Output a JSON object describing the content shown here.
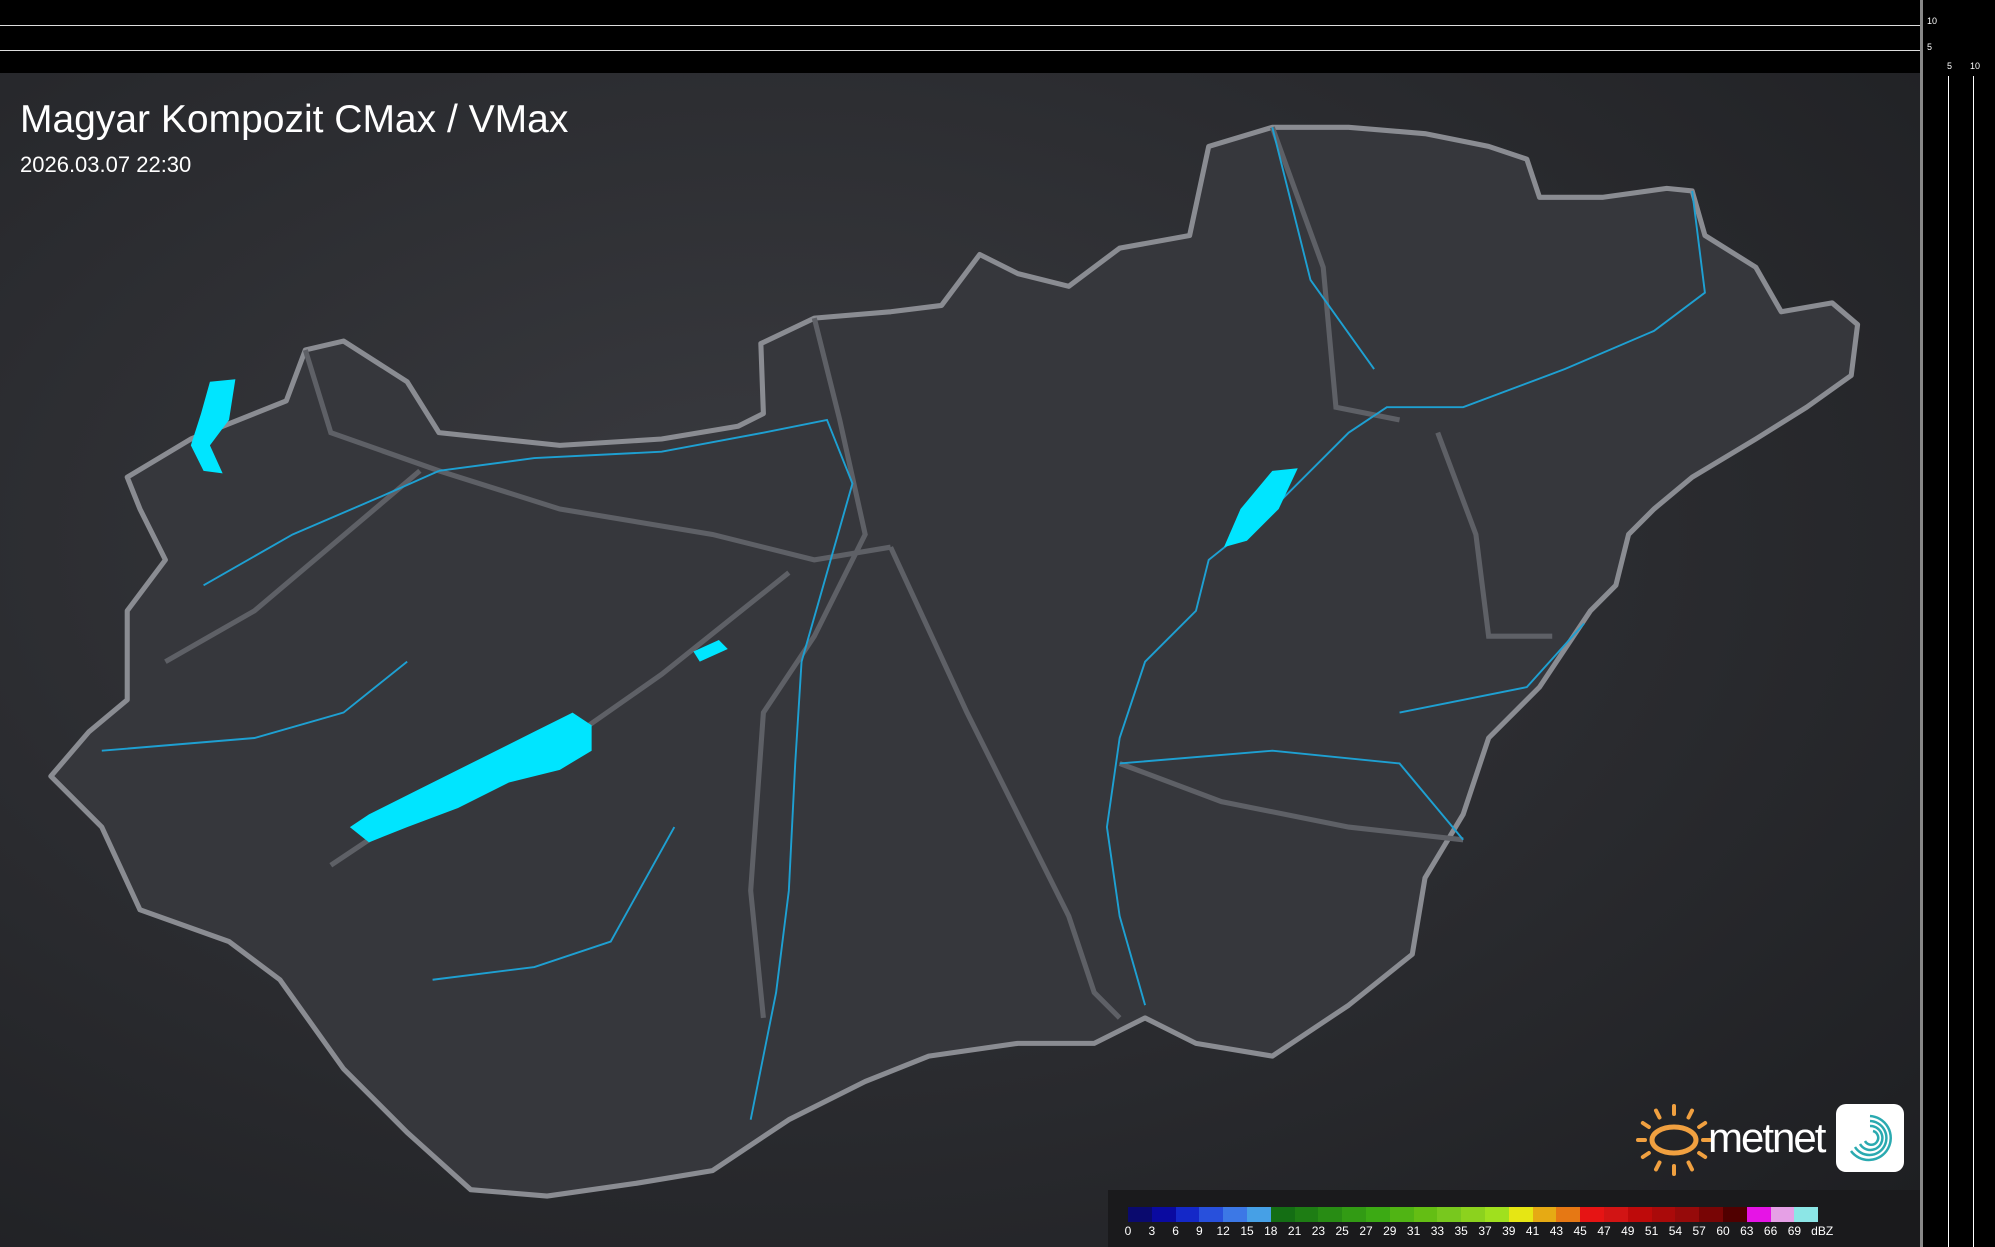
{
  "header": {
    "title": "Magyar Kompozit CMax / VMax",
    "datetime": "2026.03.07 22:30"
  },
  "side_axis": {
    "vertical_labels": [
      "10",
      "5"
    ],
    "horizontal_labels": [
      "5",
      "10"
    ]
  },
  "legend": {
    "unit": "dBZ",
    "values": [
      "0",
      "3",
      "6",
      "9",
      "12",
      "15",
      "18",
      "21",
      "23",
      "25",
      "27",
      "29",
      "31",
      "33",
      "35",
      "37",
      "39",
      "41",
      "43",
      "45",
      "47",
      "49",
      "51",
      "54",
      "57",
      "60",
      "63",
      "66",
      "69"
    ],
    "colors": [
      "#0a0a6e",
      "#0a0aa0",
      "#1428c8",
      "#2850dc",
      "#3c78e6",
      "#46a0e6",
      "#146e14",
      "#1e7d14",
      "#288c14",
      "#329b14",
      "#3caa14",
      "#50b414",
      "#64be14",
      "#78c81e",
      "#8cd21e",
      "#a0e01e",
      "#e6e614",
      "#e6aa14",
      "#e67814",
      "#e61414",
      "#d21414",
      "#be0a0a",
      "#aa0a0a",
      "#960a0a",
      "#780505",
      "#500000",
      "#e614e6",
      "#e6a0e6",
      "#8ce6e6"
    ]
  },
  "brand": {
    "name": "metnet",
    "sun_color": "#f0a040",
    "icon_color": "#2aaab0"
  },
  "map": {
    "region": "Hungary",
    "water_color": "#00e5ff",
    "river_color": "#1ea0d2",
    "border_color": "#8a8c92"
  }
}
